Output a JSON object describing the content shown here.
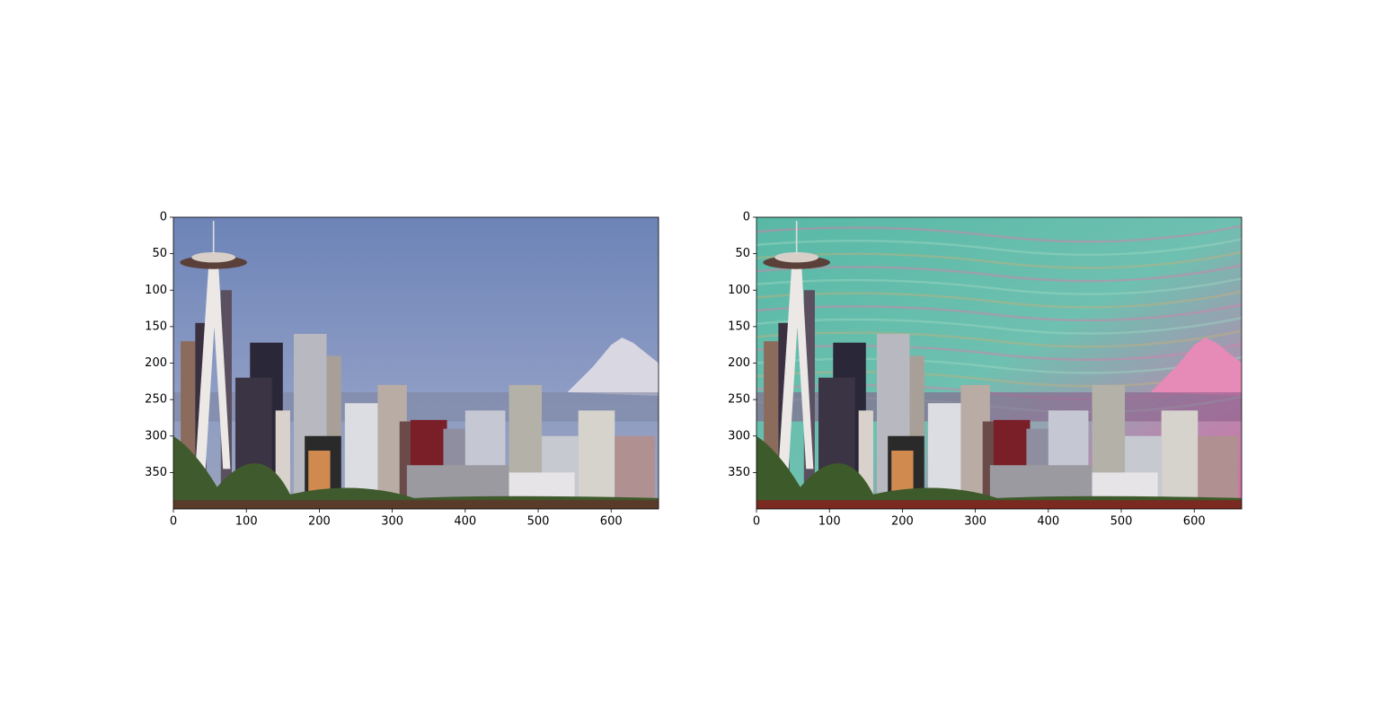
{
  "chart_data": [
    {
      "type": "image",
      "xlim": [
        0,
        665
      ],
      "ylim": [
        400,
        0
      ],
      "xticks": [
        0,
        100,
        200,
        300,
        400,
        500,
        600
      ],
      "yticks": [
        0,
        50,
        100,
        150,
        200,
        250,
        300,
        350
      ]
    },
    {
      "type": "image",
      "xlim": [
        0,
        665
      ],
      "ylim": [
        400,
        0
      ],
      "xticks": [
        0,
        100,
        200,
        300,
        400,
        500,
        600
      ],
      "yticks": [
        0,
        50,
        100,
        150,
        200,
        250,
        300,
        350
      ]
    }
  ]
}
